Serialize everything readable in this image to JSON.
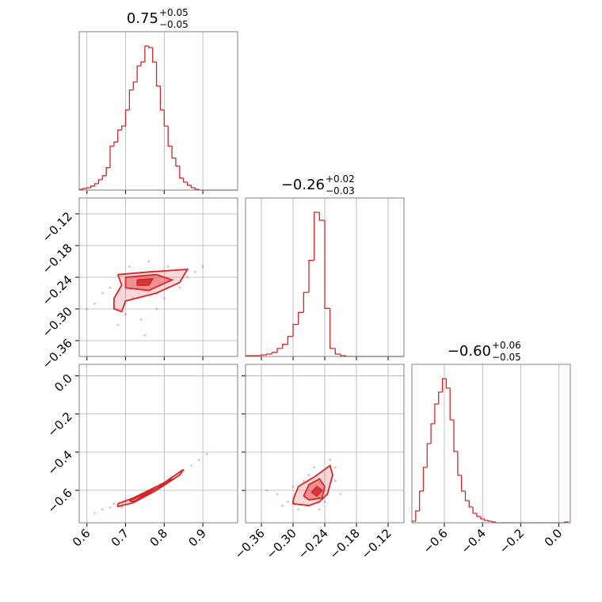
{
  "chart_data": {
    "type": "corner",
    "color": "#d62728",
    "grid": true,
    "parameters": [
      {
        "title": {
          "value": "0.75",
          "upper": "+0.05",
          "lower": "−0.05"
        },
        "lim": [
          0.58,
          0.99
        ],
        "ticks": [
          0.6,
          0.7,
          0.8,
          0.9
        ],
        "bins": [
          0.58,
          0.59,
          0.6,
          0.61,
          0.62,
          0.63,
          0.64,
          0.65,
          0.66,
          0.67,
          0.68,
          0.69,
          0.7,
          0.71,
          0.72,
          0.73,
          0.74,
          0.75,
          0.76,
          0.77,
          0.78,
          0.79,
          0.8,
          0.81,
          0.82,
          0.83,
          0.84,
          0.85,
          0.86,
          0.87,
          0.88,
          0.89,
          0.9,
          0.91,
          0.92,
          0.93,
          0.94,
          0.95,
          0.96,
          0.97,
          0.98,
          0.99
        ],
        "counts": [
          1,
          2,
          3,
          5,
          8,
          13,
          18,
          28,
          55,
          60,
          75,
          80,
          100,
          125,
          135,
          155,
          160,
          180,
          178,
          160,
          130,
          100,
          80,
          55,
          40,
          30,
          15,
          10,
          6,
          3,
          1,
          0,
          0,
          0,
          0,
          0,
          0,
          0,
          0,
          0,
          0
        ]
      },
      {
        "title": {
          "value": "−0.26",
          "upper": "+0.02",
          "lower": "−0.03"
        },
        "lim": [
          -0.39,
          -0.09
        ],
        "ticks": [
          {
            "value": -0.36,
            "label": "−0.36"
          },
          {
            "value": -0.3,
            "label": "−0.30"
          },
          {
            "value": -0.24,
            "label": "−0.24"
          },
          {
            "value": -0.18,
            "label": "−0.18"
          },
          {
            "value": -0.12,
            "label": "−0.12"
          }
        ],
        "bins": [
          -0.39,
          -0.38,
          -0.37,
          -0.36,
          -0.35,
          -0.34,
          -0.33,
          -0.32,
          -0.31,
          -0.3,
          -0.29,
          -0.28,
          -0.27,
          -0.26,
          -0.25,
          -0.24,
          -0.23,
          -0.22,
          -0.21,
          -0.2,
          -0.19,
          -0.18,
          -0.17,
          -0.16,
          -0.15,
          -0.14,
          -0.13,
          -0.12,
          -0.11,
          -0.1,
          -0.09
        ],
        "counts": [
          1,
          1,
          1,
          2,
          3,
          5,
          10,
          15,
          25,
          40,
          55,
          80,
          120,
          180,
          170,
          60,
          10,
          3,
          1,
          0,
          0,
          0,
          0,
          0,
          0,
          0,
          0,
          0,
          0,
          0
        ]
      },
      {
        "title": {
          "value": "−0.60",
          "upper": "+0.06",
          "lower": "−0.05"
        },
        "lim": [
          -0.77,
          0.06
        ],
        "ticks": [
          {
            "value": -0.6,
            "label": "−0.6"
          },
          {
            "value": -0.4,
            "label": "−0.4"
          },
          {
            "value": -0.2,
            "label": "−0.2"
          },
          {
            "value": 0,
            "label": "0.0"
          }
        ],
        "bins": [
          -0.77,
          -0.75,
          -0.73,
          -0.71,
          -0.69,
          -0.67,
          -0.65,
          -0.63,
          -0.61,
          -0.59,
          -0.57,
          -0.55,
          -0.53,
          -0.51,
          -0.49,
          -0.47,
          -0.45,
          -0.43,
          -0.41,
          -0.39,
          -0.37,
          -0.35,
          -0.33,
          -0.31,
          -0.29,
          -0.27,
          -0.25,
          -0.23,
          -0.21,
          -0.19,
          -0.17,
          -0.15,
          -0.13,
          -0.11,
          -0.09,
          -0.07,
          -0.05,
          -0.03,
          -0.01,
          0.01,
          0.03,
          0.05
        ],
        "counts": [
          2,
          15,
          40,
          70,
          100,
          125,
          150,
          165,
          182,
          170,
          130,
          90,
          60,
          40,
          28,
          20,
          12,
          8,
          5,
          3,
          2,
          1,
          0,
          0,
          0,
          0,
          0,
          0,
          0,
          0,
          0,
          0,
          0,
          0,
          0,
          0,
          0,
          0,
          0,
          0,
          1
        ]
      }
    ],
    "pairs": [
      {
        "contours": [
          {
            "x": [
              0.68,
              0.76,
              0.86,
              0.84,
              0.78,
              0.7,
              0.69,
              0.67,
              0.67,
              0.69,
              0.68
            ],
            "y": [
              -0.235,
              -0.23,
              -0.225,
              -0.25,
              -0.27,
              -0.285,
              -0.305,
              -0.3,
              -0.28,
              -0.255,
              -0.235
            ]
          },
          {
            "x": [
              0.7,
              0.78,
              0.82,
              0.76,
              0.7,
              0.7
            ],
            "y": [
              -0.24,
              -0.235,
              -0.245,
              -0.265,
              -0.26,
              -0.24
            ]
          },
          {
            "x": [
              0.73,
              0.77,
              0.76,
              0.73,
              0.73
            ],
            "y": [
              -0.245,
              -0.243,
              -0.255,
              -0.255,
              -0.245
            ]
          }
        ],
        "samples": {
          "x": [
            0.66,
            0.7,
            0.72,
            0.64,
            0.81,
            0.84,
            0.88,
            0.78,
            0.74,
            0.62,
            0.9,
            0.76,
            0.68,
            0.8,
            0.86,
            0.71,
            0.6,
            0.75
          ],
          "y": [
            -0.26,
            -0.31,
            -0.28,
            -0.27,
            -0.22,
            -0.26,
            -0.23,
            -0.3,
            -0.32,
            -0.29,
            -0.22,
            -0.21,
            -0.33,
            -0.28,
            -0.24,
            -0.22,
            -0.3,
            -0.35
          ]
        }
      },
      {
        "contours": [
          {
            "x": [
              0.68,
              0.72,
              0.8,
              0.85,
              0.84,
              0.78,
              0.72,
              0.68,
              0.68
            ],
            "y": [
              -0.67,
              -0.64,
              -0.56,
              -0.49,
              -0.52,
              -0.6,
              -0.665,
              -0.685,
              -0.67
            ]
          },
          {
            "x": [
              0.71,
              0.79,
              0.82,
              0.78,
              0.72,
              0.71
            ],
            "y": [
              -0.655,
              -0.58,
              -0.54,
              -0.59,
              -0.66,
              -0.655
            ]
          },
          {
            "x": [
              0.74,
              0.77,
              0.76,
              0.74,
              0.74
            ],
            "y": [
              -0.625,
              -0.6,
              -0.615,
              -0.63,
              -0.625
            ]
          }
        ],
        "samples": {
          "x": [
            0.62,
            0.64,
            0.66,
            0.7,
            0.73,
            0.76,
            0.79,
            0.82,
            0.85,
            0.87,
            0.89,
            0.91,
            0.67,
            0.75,
            0.81,
            0.69
          ],
          "y": [
            -0.72,
            -0.7,
            -0.69,
            -0.66,
            -0.63,
            -0.61,
            -0.57,
            -0.53,
            -0.5,
            -0.47,
            -0.44,
            -0.41,
            -0.67,
            -0.63,
            -0.55,
            -0.69
          ]
        }
      },
      {
        "contours": [
          {
            "x": [
              -0.3,
              -0.29,
              -0.26,
              -0.23,
              -0.225,
              -0.235,
              -0.25,
              -0.27,
              -0.3,
              -0.3
            ],
            "y": [
              -0.65,
              -0.58,
              -0.53,
              -0.47,
              -0.52,
              -0.62,
              -0.66,
              -0.68,
              -0.67,
              -0.65
            ]
          },
          {
            "x": [
              -0.28,
              -0.27,
              -0.25,
              -0.24,
              -0.245,
              -0.27,
              -0.28
            ],
            "y": [
              -0.63,
              -0.57,
              -0.54,
              -0.58,
              -0.64,
              -0.65,
              -0.63
            ]
          },
          {
            "x": [
              -0.265,
              -0.255,
              -0.245,
              -0.255,
              -0.265
            ],
            "y": [
              -0.61,
              -0.58,
              -0.6,
              -0.63,
              -0.61
            ]
          }
        ],
        "samples": {
          "x": [
            -0.33,
            -0.31,
            -0.29,
            -0.22,
            -0.22,
            -0.21,
            -0.27,
            -0.3,
            -0.25,
            -0.23,
            -0.35,
            -0.28,
            -0.24,
            -0.32,
            -0.26
          ],
          "y": [
            -0.62,
            -0.66,
            -0.7,
            -0.55,
            -0.48,
            -0.62,
            -0.52,
            -0.58,
            -0.7,
            -0.44,
            -0.6,
            -0.55,
            -0.66,
            -0.68,
            -0.48
          ]
        }
      }
    ]
  }
}
